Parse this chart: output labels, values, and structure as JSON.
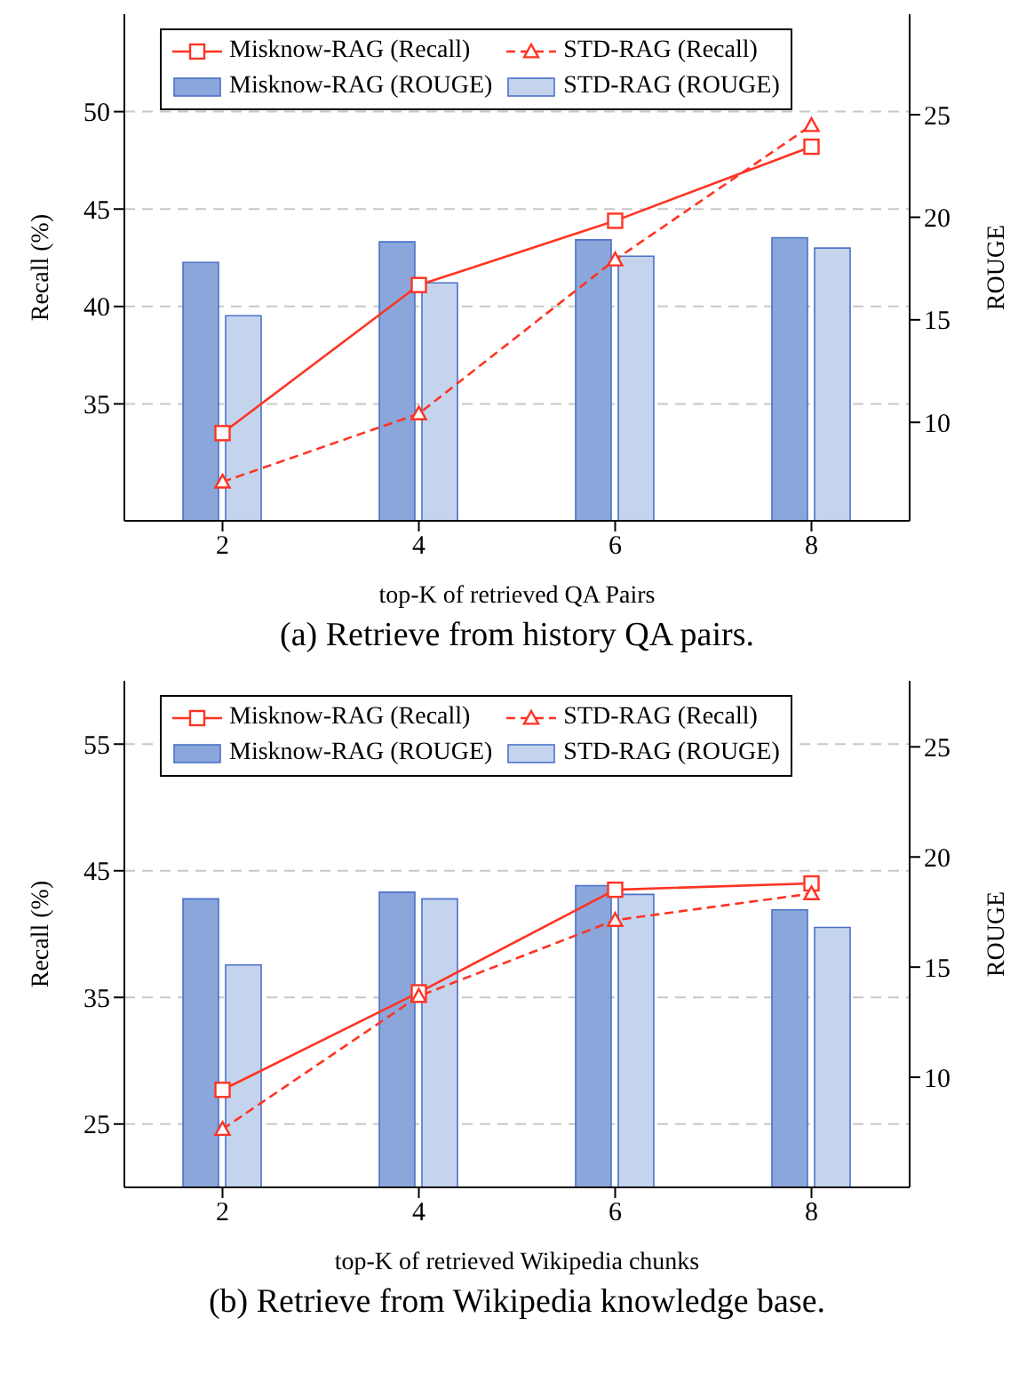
{
  "chart_data": [
    {
      "type": "bar",
      "title": "(a) Retrieve from history QA pairs.",
      "xlabel": "top-K of retrieved QA Pairs",
      "ylabel": "Recall (%)",
      "y2label": "ROUGE",
      "categories": [
        "2",
        "4",
        "6",
        "8"
      ],
      "series": [
        {
          "name": "Misknow-RAG (Recall)",
          "type": "line",
          "color": "#ff3322",
          "marker": "square",
          "line_style": "solid",
          "values": [
            33.5,
            41.1,
            44.4,
            48.2
          ]
        },
        {
          "name": "STD-RAG (Recall)",
          "type": "line",
          "color": "#ff3322",
          "marker": "triangle",
          "line_style": "dashed",
          "values": [
            31.0,
            34.5,
            42.4,
            49.3
          ]
        },
        {
          "name": "Misknow-RAG (ROUGE)",
          "axis": "y2",
          "color": "#8ba6da",
          "values": [
            17.8,
            18.8,
            18.9,
            19.0
          ]
        },
        {
          "name": "STD-RAG (ROUGE)",
          "axis": "y2",
          "color": "#c5d4ed",
          "values": [
            15.2,
            16.8,
            18.1,
            18.5
          ]
        }
      ],
      "ylim": [
        29,
        55
      ],
      "yticks": [
        35,
        40,
        45,
        50
      ],
      "y2lim": [
        5.2,
        29.9
      ],
      "y2ticks": [
        10,
        15,
        20,
        25
      ],
      "grid": "y",
      "legend": "top"
    },
    {
      "type": "bar",
      "title": "(b) Retrieve from Wikipedia knowledge base.",
      "xlabel": "top-K of retrieved Wikipedia chunks",
      "ylabel": "Recall (%)",
      "y2label": "ROUGE",
      "categories": [
        "2",
        "4",
        "6",
        "8"
      ],
      "series": [
        {
          "name": "Misknow-RAG (Recall)",
          "type": "line",
          "color": "#ff3322",
          "marker": "square",
          "line_style": "solid",
          "values": [
            27.7,
            35.4,
            43.5,
            44.0
          ]
        },
        {
          "name": "STD-RAG (Recall)",
          "type": "line",
          "color": "#ff3322",
          "marker": "triangle",
          "line_style": "dashed",
          "values": [
            24.6,
            35.1,
            41.1,
            43.2
          ]
        },
        {
          "name": "Misknow-RAG (ROUGE)",
          "axis": "y2",
          "color": "#8ba6da",
          "values": [
            18.1,
            18.4,
            18.7,
            17.6
          ]
        },
        {
          "name": "STD-RAG (ROUGE)",
          "axis": "y2",
          "color": "#c5d4ed",
          "values": [
            15.1,
            18.1,
            18.3,
            16.8
          ]
        }
      ],
      "ylim": [
        20,
        60
      ],
      "yticks": [
        25,
        35,
        45,
        55
      ],
      "y2lim": [
        5,
        28
      ],
      "y2ticks": [
        10,
        15,
        20,
        25
      ],
      "grid": "y",
      "legend": "top"
    }
  ]
}
